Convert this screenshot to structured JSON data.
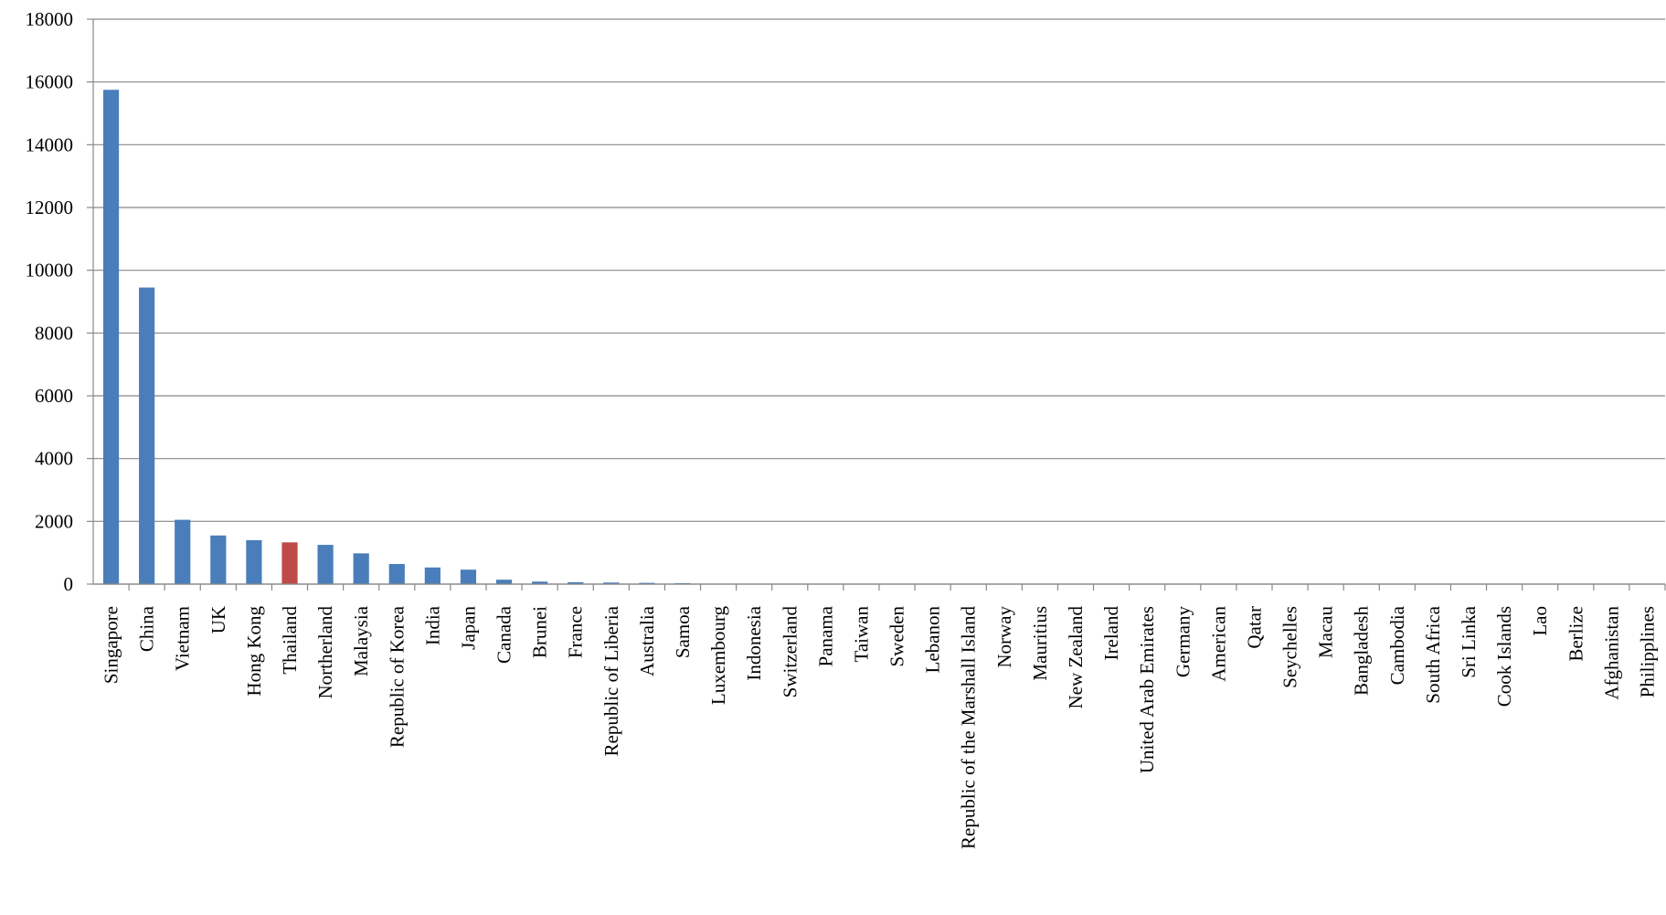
{
  "chart_data": {
    "type": "bar",
    "categories": [
      "Singapore",
      "China",
      "Vietnam",
      "UK",
      "Hong Kong",
      "Thailand",
      "Northerland",
      "Malaysia",
      "Republic of Korea",
      "India",
      "Japan",
      "Canada",
      "Brunei",
      "France",
      "Republic of Liberia",
      "Australia",
      "Samoa",
      "Luxembourg",
      "Indonesia",
      "Switzerland",
      "Panama",
      "Taiwan",
      "Sweden",
      "Lebanon",
      "Republic of the Marshall Island",
      "Norway",
      "Mauritius",
      "New Zealand",
      "Ireland",
      "United Arab Emirates",
      "Germany",
      "American",
      "Qatar",
      "Seychelles",
      "Macau",
      "Bangladesh",
      "Cambodia",
      "South Africa",
      "Sri Linka",
      "Cook Islands",
      "Lao",
      "Berlize",
      "Afghanistan",
      "Philipplines"
    ],
    "values": [
      15750,
      9450,
      2050,
      1550,
      1400,
      1330,
      1250,
      980,
      640,
      530,
      460,
      140,
      80,
      60,
      50,
      40,
      30,
      10,
      5,
      4,
      3,
      3,
      2,
      2,
      2,
      1,
      1,
      1,
      1,
      1,
      1,
      1,
      1,
      1,
      1,
      1,
      1,
      1,
      1,
      1,
      1,
      1,
      1,
      1
    ],
    "color": "#4a7ebb",
    "colors": [
      "#4a7ebb",
      "#4a7ebb",
      "#4a7ebb",
      "#4a7ebb",
      "#4a7ebb",
      "#be4b48",
      "#4a7ebb",
      "#4a7ebb",
      "#4a7ebb",
      "#4a7ebb",
      "#4a7ebb",
      "#4a7ebb",
      "#4a7ebb",
      "#4a7ebb",
      "#4a7ebb",
      "#4a7ebb",
      "#4a7ebb",
      "#4a7ebb",
      "#4a7ebb",
      "#4a7ebb",
      "#4a7ebb",
      "#4a7ebb",
      "#4a7ebb",
      "#4a7ebb",
      "#4a7ebb",
      "#4a7ebb",
      "#4a7ebb",
      "#4a7ebb",
      "#4a7ebb",
      "#4a7ebb",
      "#4a7ebb",
      "#4a7ebb",
      "#4a7ebb",
      "#4a7ebb",
      "#4a7ebb",
      "#4a7ebb",
      "#4a7ebb",
      "#4a7ebb",
      "#4a7ebb",
      "#4a7ebb",
      "#4a7ebb",
      "#4a7ebb",
      "#4a7ebb",
      "#4a7ebb"
    ],
    "ylim": [
      0,
      18000
    ],
    "yticks": [
      0,
      2000,
      4000,
      6000,
      8000,
      10000,
      12000,
      14000,
      16000,
      18000
    ],
    "grid": true
  }
}
